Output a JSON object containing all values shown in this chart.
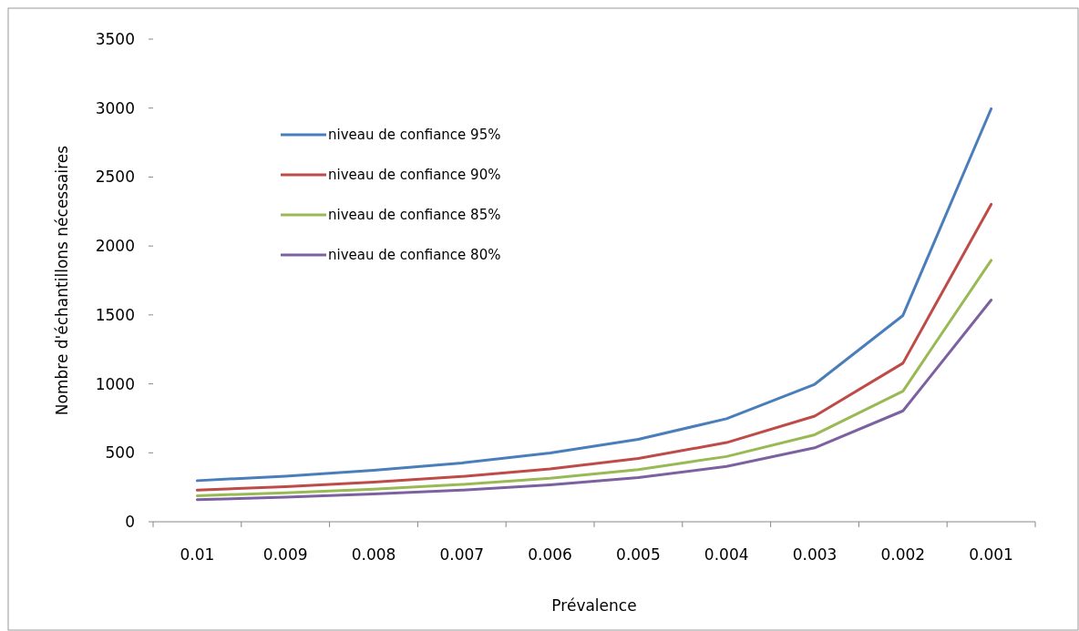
{
  "chart_data": {
    "type": "line",
    "xlabel": "Prévalence",
    "ylabel": "Nombre d'échantillons nécessaires",
    "categories": [
      "0.01",
      "0.009",
      "0.008",
      "0.007",
      "0.006",
      "0.005",
      "0.004",
      "0.003",
      "0.002",
      "0.001"
    ],
    "series": [
      {
        "name": "niveau de confiance 95%",
        "color": "#4a7ebb",
        "values": [
          298,
          331,
          373,
          426,
          498,
          598,
          747,
          997,
          1496,
          2995
        ]
      },
      {
        "name": "niveau de confiance 90%",
        "color": "#be4b48",
        "values": [
          229,
          255,
          287,
          328,
          383,
          459,
          574,
          766,
          1150,
          2302
        ]
      },
      {
        "name": "niveau de confiance 85%",
        "color": "#98b954",
        "values": [
          189,
          210,
          236,
          270,
          315,
          378,
          473,
          631,
          947,
          1896
        ]
      },
      {
        "name": "niveau de confiance 80%",
        "color": "#7d60a0",
        "values": [
          160,
          178,
          201,
          229,
          268,
          321,
          401,
          536,
          804,
          1608
        ]
      }
    ],
    "ylim": [
      0,
      3500
    ],
    "yticks": [
      0,
      500,
      1000,
      1500,
      2000,
      2500,
      3000,
      3500
    ],
    "grid": false,
    "legend": "top left",
    "marker": "none",
    "line_style": "solid"
  }
}
